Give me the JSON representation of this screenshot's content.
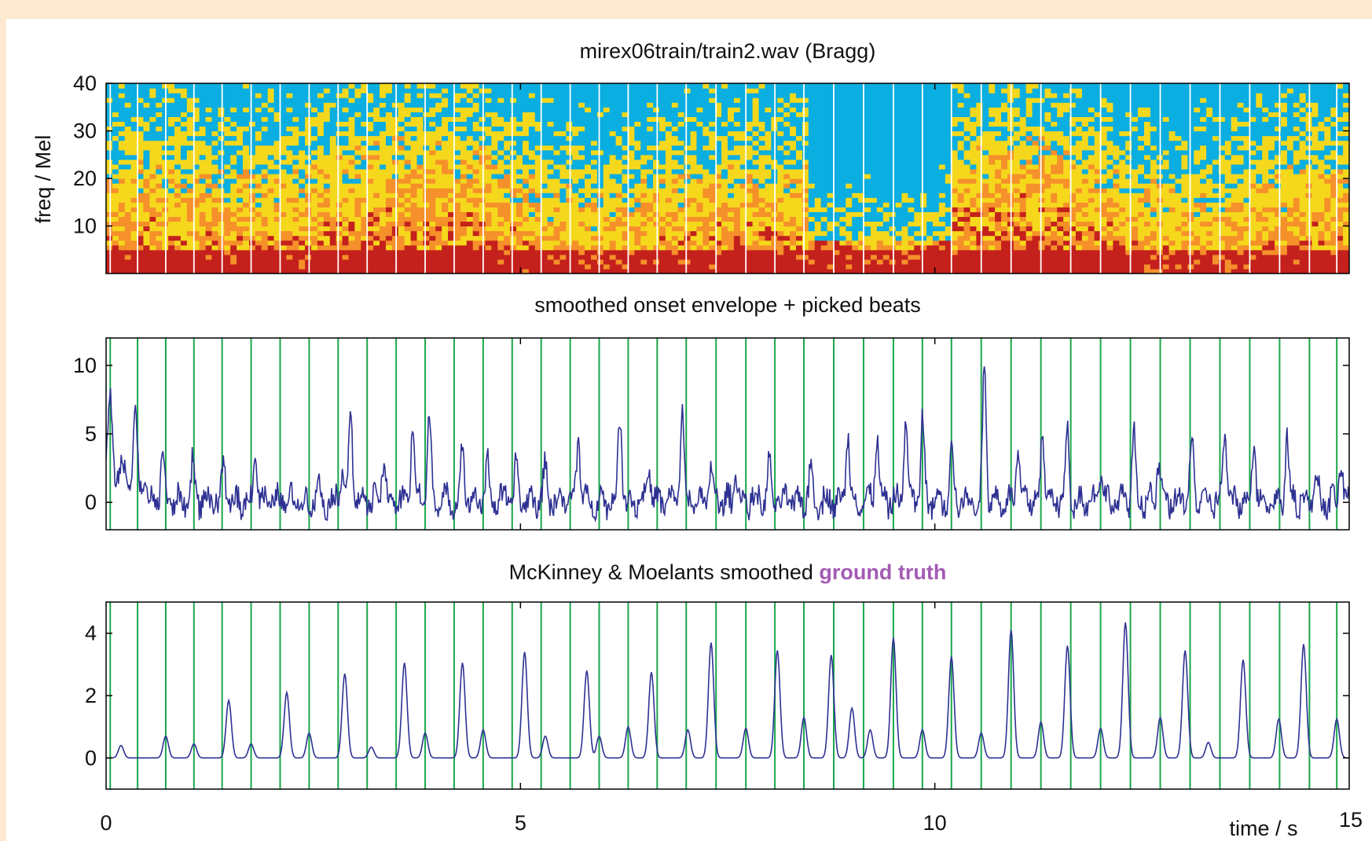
{
  "chart_data": [
    {
      "type": "heatmap",
      "title": "mirex06train/train2.wav (Bragg)",
      "ylabel": "freq / Mel",
      "xlim": [
        0,
        15
      ],
      "ylim": [
        0,
        40
      ],
      "y_ticks": [
        10,
        20,
        30,
        40
      ],
      "colormap": [
        "#0aaee0",
        "#f5d81c",
        "#f5902a",
        "#c4201c"
      ],
      "beat_line_color": "#ffffff"
    },
    {
      "type": "line",
      "title": "smoothed onset envelope + picked beats",
      "xlim": [
        0,
        15
      ],
      "ylim": [
        -2,
        12
      ],
      "y_ticks": [
        0,
        5,
        10
      ],
      "line_color": "#2e3192",
      "beat_line_color": "#1aa84b",
      "peaks": [
        [
          0.05,
          5.2
        ],
        [
          0.35,
          5.1
        ],
        [
          0.68,
          3.8
        ],
        [
          1.05,
          3.2
        ],
        [
          1.42,
          2.4
        ],
        [
          1.8,
          4.0
        ],
        [
          2.55,
          1.3
        ],
        [
          2.85,
          3.2
        ],
        [
          2.95,
          7.0
        ],
        [
          3.35,
          3.2
        ],
        [
          3.7,
          6.3
        ],
        [
          3.9,
          6.8
        ],
        [
          4.3,
          4.3
        ],
        [
          4.6,
          3.0
        ],
        [
          4.95,
          2.8
        ],
        [
          5.3,
          2.8
        ],
        [
          5.7,
          5.3
        ],
        [
          6.2,
          7.0
        ],
        [
          6.55,
          2.6
        ],
        [
          6.95,
          7.0
        ],
        [
          7.3,
          2.6
        ],
        [
          7.6,
          2.6
        ],
        [
          8.0,
          2.8
        ],
        [
          8.5,
          2.6
        ],
        [
          8.95,
          5.5
        ],
        [
          9.3,
          5.2
        ],
        [
          9.65,
          6.5
        ],
        [
          9.85,
          6.2
        ],
        [
          10.2,
          4.5
        ],
        [
          10.6,
          10.8
        ],
        [
          11.0,
          4.0
        ],
        [
          11.3,
          5.3
        ],
        [
          11.6,
          5.0
        ],
        [
          12.0,
          2.6
        ],
        [
          12.4,
          5.2
        ],
        [
          12.7,
          3.0
        ],
        [
          13.1,
          4.8
        ],
        [
          13.5,
          5.4
        ],
        [
          13.85,
          5.0
        ],
        [
          14.25,
          4.9
        ],
        [
          14.6,
          2.2
        ],
        [
          14.9,
          3.0
        ]
      ]
    },
    {
      "type": "line",
      "title_prefix": "McKinney & Moelants smoothed ",
      "title_highlight": "ground truth",
      "xlabel": "time / s",
      "xlim": [
        0,
        15
      ],
      "ylim": [
        -1,
        5
      ],
      "y_ticks": [
        0,
        2,
        4
      ],
      "x_ticks": [
        0,
        5,
        10,
        15
      ],
      "line_color": "#2e3192",
      "beat_line_color": "#1aa84b",
      "beats": [
        0.05,
        0.38,
        0.72,
        1.06,
        1.4,
        1.75,
        2.1,
        2.45,
        2.8,
        3.15,
        3.5,
        3.85,
        4.2,
        4.55,
        4.9,
        5.25,
        5.6,
        5.95,
        6.3,
        6.65,
        7.0,
        7.36,
        7.72,
        8.07,
        8.42,
        8.78,
        9.14,
        9.5,
        9.85,
        10.2,
        10.56,
        10.92,
        11.28,
        11.64,
        12.0,
        12.36,
        12.72,
        13.08,
        13.44,
        13.8,
        14.16,
        14.52,
        14.85
      ],
      "peaks": [
        [
          0.18,
          0.4
        ],
        [
          0.72,
          0.7
        ],
        [
          1.06,
          0.45
        ],
        [
          1.48,
          1.85
        ],
        [
          1.75,
          0.45
        ],
        [
          2.18,
          2.1
        ],
        [
          2.45,
          0.8
        ],
        [
          2.88,
          2.7
        ],
        [
          3.2,
          0.35
        ],
        [
          3.6,
          3.05
        ],
        [
          3.85,
          0.8
        ],
        [
          4.3,
          3.05
        ],
        [
          4.55,
          0.9
        ],
        [
          5.05,
          3.4
        ],
        [
          5.3,
          0.7
        ],
        [
          5.8,
          2.8
        ],
        [
          5.95,
          0.7
        ],
        [
          6.58,
          2.75
        ],
        [
          6.3,
          1.0
        ],
        [
          7.3,
          3.7
        ],
        [
          7.02,
          0.9
        ],
        [
          7.72,
          0.95
        ],
        [
          8.1,
          3.45
        ],
        [
          8.42,
          1.3
        ],
        [
          8.75,
          3.3
        ],
        [
          9.0,
          1.6
        ],
        [
          9.5,
          3.85
        ],
        [
          9.22,
          0.9
        ],
        [
          10.2,
          3.25
        ],
        [
          9.85,
          0.9
        ],
        [
          10.92,
          4.1
        ],
        [
          10.56,
          0.8
        ],
        [
          11.6,
          3.6
        ],
        [
          11.28,
          1.15
        ],
        [
          12.3,
          4.35
        ],
        [
          12.0,
          0.95
        ],
        [
          12.72,
          1.3
        ],
        [
          13.02,
          3.45
        ],
        [
          13.3,
          0.5
        ],
        [
          13.72,
          3.15
        ],
        [
          14.15,
          1.25
        ],
        [
          14.45,
          3.65
        ],
        [
          14.85,
          1.25
        ]
      ]
    }
  ]
}
